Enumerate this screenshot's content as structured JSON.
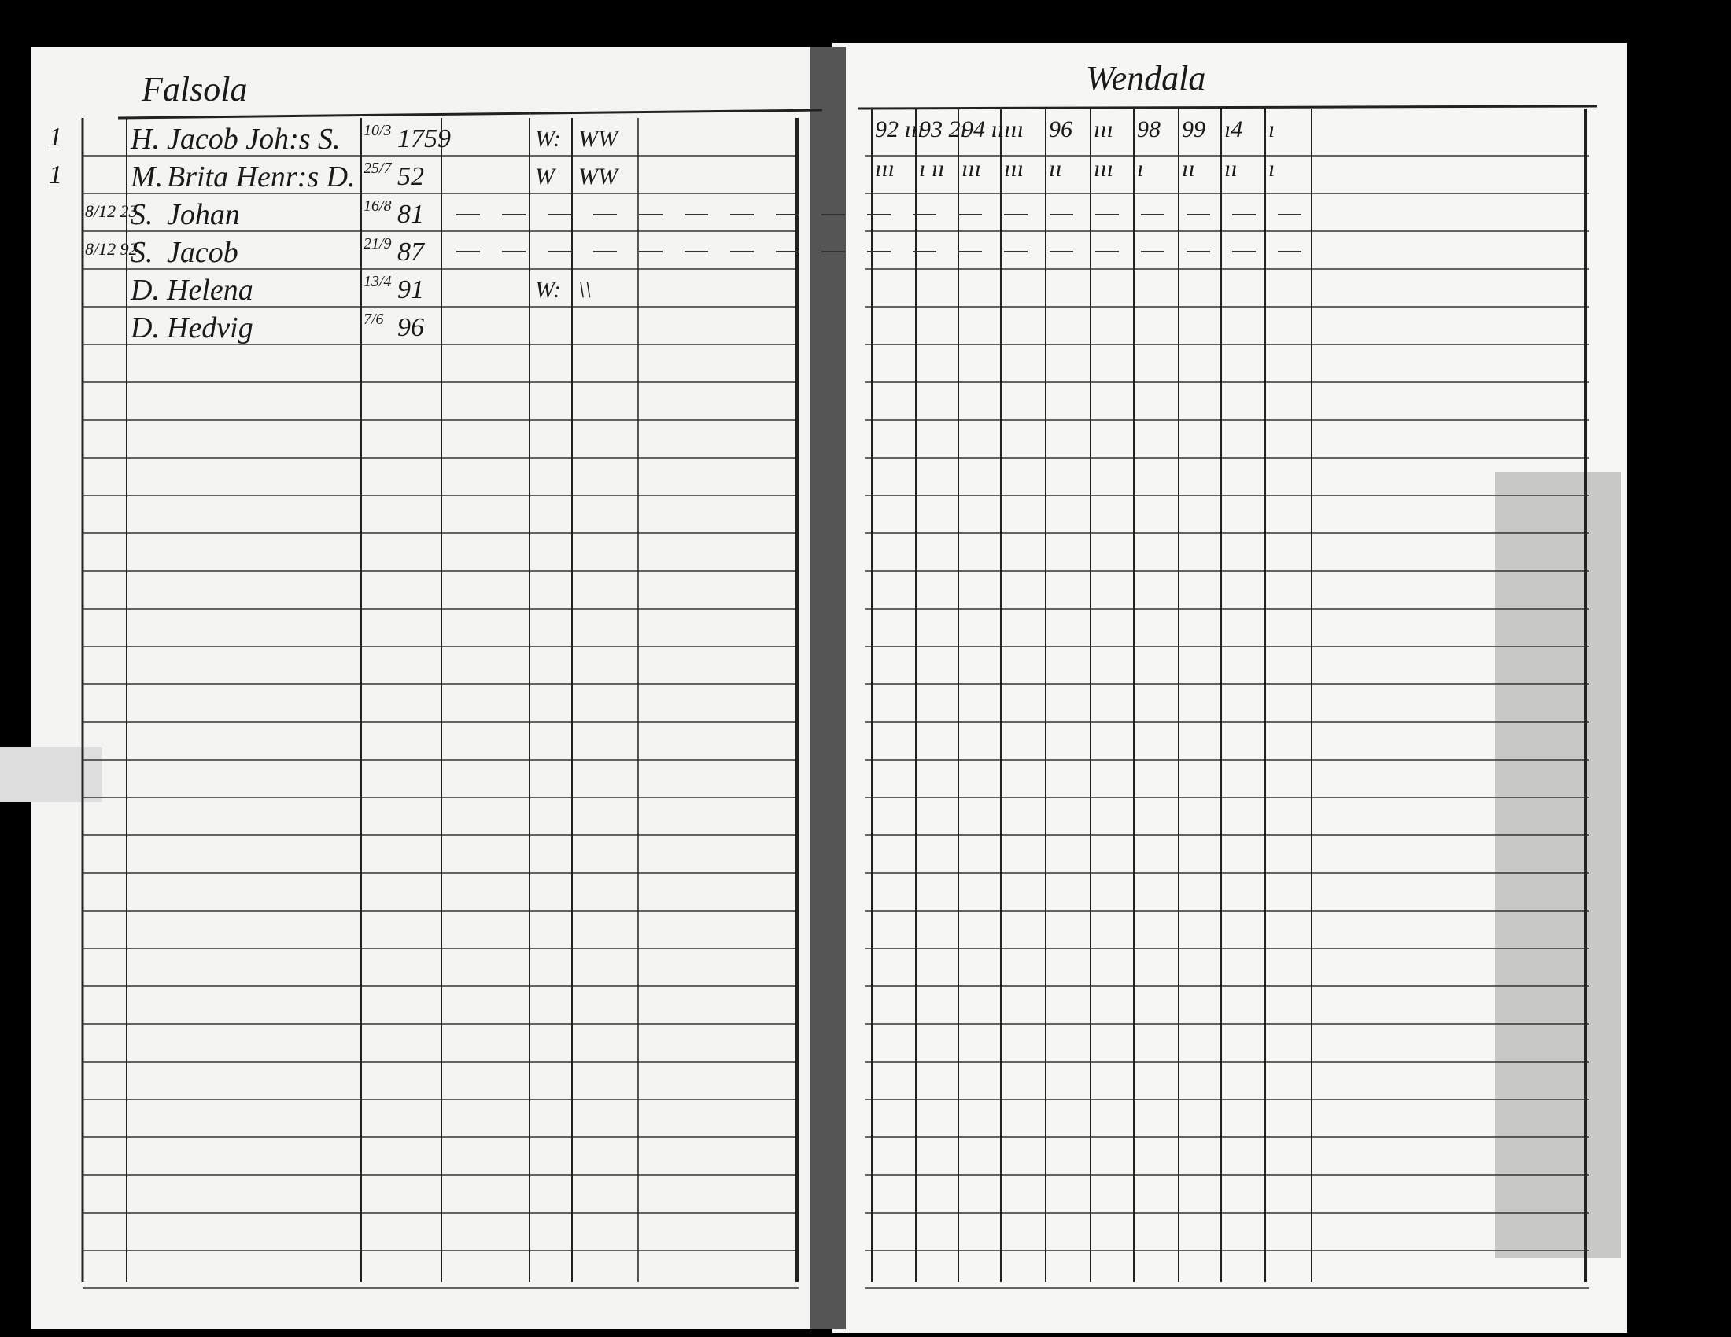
{
  "left_page": {
    "title": "Falsola",
    "rows": [
      {
        "count": "1",
        "note": "",
        "role": "H.",
        "name": "Jacob Joh:s S.",
        "day_month": "10/3",
        "year": "1759",
        "mark1": "W:",
        "mark2": "WW"
      },
      {
        "count": "1",
        "note": "",
        "role": "M.",
        "name": "Brita Henr:s D.",
        "day_month": "25/7",
        "year": "52",
        "mark1": "W",
        "mark2": "WW"
      },
      {
        "count": "",
        "note": "8/12 23",
        "role": "S.",
        "name": "Johan",
        "day_month": "16/8",
        "year": "81",
        "mark1": "",
        "mark2": ""
      },
      {
        "count": "",
        "note": "8/12 92",
        "role": "S.",
        "name": "Jacob",
        "day_month": "21/9",
        "year": "87",
        "mark1": "",
        "mark2": ""
      },
      {
        "count": "",
        "note": "",
        "role": "D.",
        "name": "Helena",
        "day_month": "13/4",
        "year": "91",
        "mark1": "W:",
        "mark2": "\\\\"
      },
      {
        "count": "",
        "note": "",
        "role": "D.",
        "name": "Hedvig",
        "day_month": "7/6",
        "year": "96",
        "mark1": "",
        "mark2": ""
      }
    ]
  },
  "right_page": {
    "title": "Wendala",
    "header_row1": [
      "92 ııı",
      "93 2ı",
      "94 ıı",
      "ııı",
      "96",
      "ııı",
      "98",
      "99",
      "ı4",
      "ı"
    ],
    "header_row2": [
      "ııı",
      "ı ıı",
      "ııı",
      "ııı",
      "ıı",
      "ııı",
      "ı",
      "ıı",
      "ıı",
      "ı"
    ]
  }
}
